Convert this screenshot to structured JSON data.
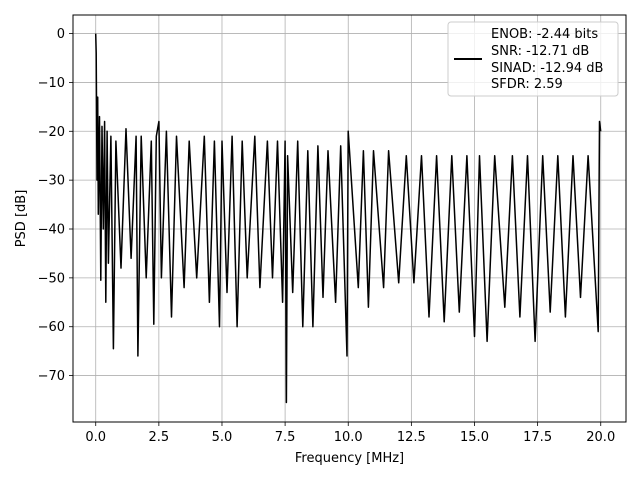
{
  "chart_data": {
    "type": "line",
    "title": "",
    "xlabel": "Frequency [MHz]",
    "ylabel": "PSD [dB]",
    "xlim": [
      -0.9,
      21.0
    ],
    "ylim": [
      -79.5,
      3.8
    ],
    "grid": true,
    "line_color": "#000000",
    "x_ticks": [
      0.0,
      2.5,
      5.0,
      7.5,
      10.0,
      12.5,
      15.0,
      17.5,
      20.0
    ],
    "x_tick_labels": [
      "0.0",
      "2.5",
      "5.0",
      "7.5",
      "10.0",
      "12.5",
      "15.0",
      "17.5",
      "20.0"
    ],
    "y_ticks": [
      0,
      -10,
      -20,
      -30,
      -40,
      -50,
      -60,
      -70
    ],
    "y_tick_labels": [
      "0",
      "−10",
      "−20",
      "−30",
      "−40",
      "−50",
      "−60",
      "−70"
    ],
    "legend_position": "upper right",
    "legend_entries": [
      "ENOB: -2.44 bits",
      "SNR: -12.71 dB",
      "SINAD: -12.94 dB",
      "SFDR: 2.59"
    ],
    "series": [
      {
        "points": [
          [
            0.0,
            0.0
          ],
          [
            0.02,
            -4
          ],
          [
            0.05,
            -30
          ],
          [
            0.08,
            -13
          ],
          [
            0.1,
            -37
          ],
          [
            0.15,
            -17
          ],
          [
            0.2,
            -50.5
          ],
          [
            0.25,
            -19
          ],
          [
            0.3,
            -40
          ],
          [
            0.35,
            -18
          ],
          [
            0.4,
            -55
          ],
          [
            0.45,
            -20
          ],
          [
            0.5,
            -47
          ],
          [
            0.6,
            -21
          ],
          [
            0.7,
            -64.5
          ],
          [
            0.8,
            -22
          ],
          [
            1.0,
            -48
          ],
          [
            1.2,
            -19.5
          ],
          [
            1.4,
            -46
          ],
          [
            1.6,
            -21
          ],
          [
            1.67,
            -66
          ],
          [
            1.8,
            -21
          ],
          [
            2.0,
            -50
          ],
          [
            2.2,
            -22
          ],
          [
            2.3,
            -59.5
          ],
          [
            2.4,
            -21
          ],
          [
            2.5,
            -18
          ],
          [
            2.6,
            -50
          ],
          [
            2.8,
            -20
          ],
          [
            3.0,
            -58
          ],
          [
            3.2,
            -21
          ],
          [
            3.5,
            -52
          ],
          [
            3.7,
            -22
          ],
          [
            4.0,
            -50
          ],
          [
            4.3,
            -21
          ],
          [
            4.5,
            -55
          ],
          [
            4.7,
            -22
          ],
          [
            4.9,
            -60
          ],
          [
            5.0,
            -22
          ],
          [
            5.2,
            -53
          ],
          [
            5.4,
            -21
          ],
          [
            5.6,
            -60
          ],
          [
            5.8,
            -22
          ],
          [
            6.0,
            -50
          ],
          [
            6.3,
            -21
          ],
          [
            6.5,
            -52
          ],
          [
            6.8,
            -22
          ],
          [
            7.0,
            -50
          ],
          [
            7.2,
            -22
          ],
          [
            7.4,
            -55
          ],
          [
            7.5,
            -22
          ],
          [
            7.55,
            -75.5
          ],
          [
            7.6,
            -25
          ],
          [
            7.8,
            -53
          ],
          [
            8.0,
            -22
          ],
          [
            8.2,
            -60
          ],
          [
            8.4,
            -24
          ],
          [
            8.6,
            -60
          ],
          [
            8.8,
            -23
          ],
          [
            9.0,
            -54
          ],
          [
            9.2,
            -24
          ],
          [
            9.5,
            -55
          ],
          [
            9.7,
            -23
          ],
          [
            9.95,
            -66
          ],
          [
            10.0,
            -20
          ],
          [
            10.05,
            -24
          ],
          [
            10.4,
            -52
          ],
          [
            10.6,
            -24
          ],
          [
            10.8,
            -56
          ],
          [
            11.0,
            -24
          ],
          [
            11.4,
            -52
          ],
          [
            11.6,
            -24
          ],
          [
            12.0,
            -51
          ],
          [
            12.3,
            -25
          ],
          [
            12.6,
            -51
          ],
          [
            12.9,
            -25
          ],
          [
            13.2,
            -58
          ],
          [
            13.5,
            -25
          ],
          [
            13.8,
            -59
          ],
          [
            14.1,
            -25
          ],
          [
            14.4,
            -57
          ],
          [
            14.7,
            -25
          ],
          [
            15.0,
            -62
          ],
          [
            15.2,
            -25
          ],
          [
            15.5,
            -63
          ],
          [
            15.8,
            -25
          ],
          [
            16.2,
            -56
          ],
          [
            16.5,
            -25
          ],
          [
            16.8,
            -58
          ],
          [
            17.1,
            -25
          ],
          [
            17.4,
            -63
          ],
          [
            17.7,
            -25
          ],
          [
            18.0,
            -57
          ],
          [
            18.3,
            -25
          ],
          [
            18.6,
            -58
          ],
          [
            18.9,
            -25
          ],
          [
            19.2,
            -54
          ],
          [
            19.5,
            -25
          ],
          [
            19.9,
            -61
          ],
          [
            19.95,
            -18
          ],
          [
            20.0,
            -20
          ]
        ]
      }
    ]
  }
}
